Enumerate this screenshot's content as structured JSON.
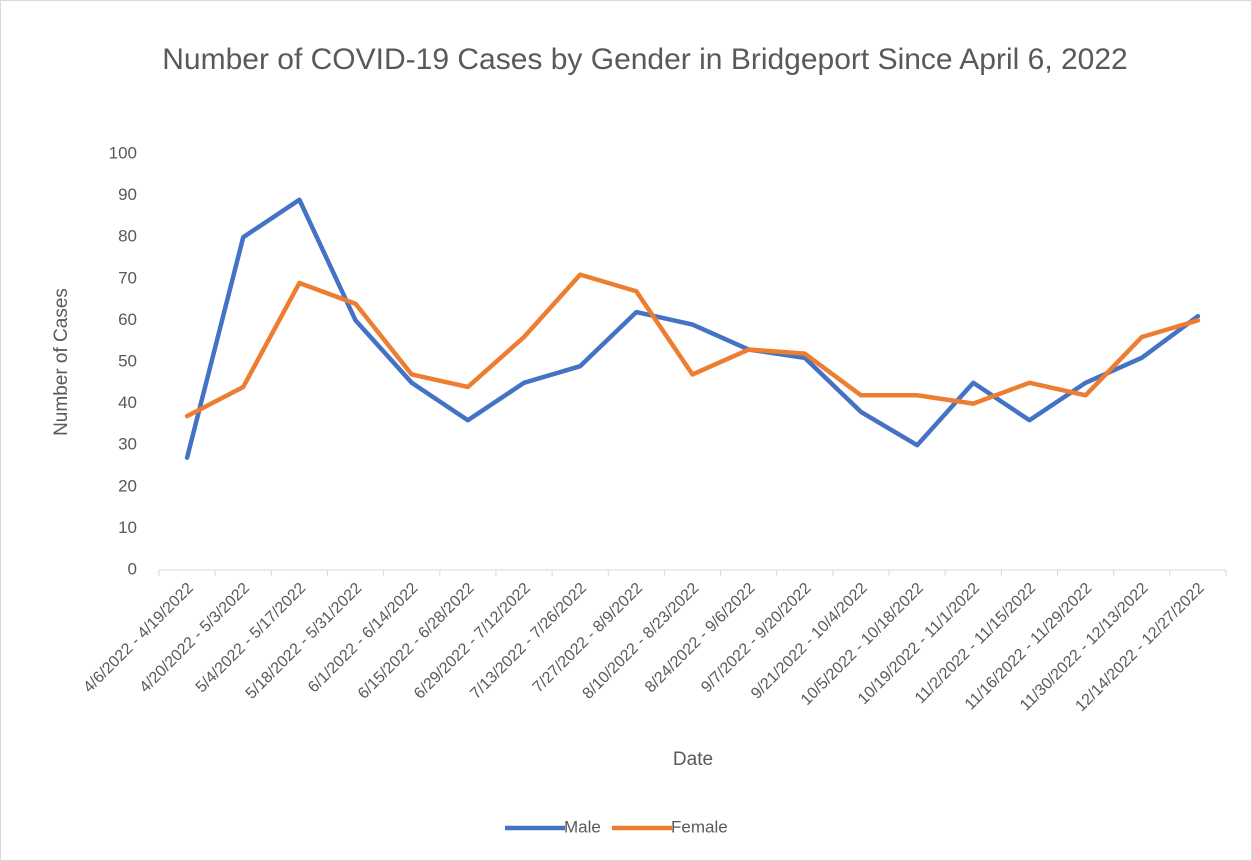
{
  "chart_data": {
    "type": "line",
    "title": "Number of COVID-19 Cases by Gender in Bridgeport Since April 6, 2022",
    "x_label": "Date",
    "y_label": "Number of Cases",
    "categories": [
      "4/6/2022 - 4/19/2022",
      "4/20/2022 - 5/3/2022",
      "5/4/2022 - 5/17/2022",
      "5/18/2022 - 5/31/2022",
      "6/1/2022 - 6/14/2022",
      "6/15/2022 - 6/28/2022",
      "6/29/2022 - 7/12/2022",
      "7/13/2022 - 7/26/2022",
      "7/27/2022 - 8/9/2022",
      "8/10/2022 - 8/23/2022",
      "8/24/2022 - 9/6/2022",
      "9/7/2022 - 9/20/2022",
      "9/21/2022 - 10/4/2022",
      "10/5/2022 - 10/18/2022",
      "10/19/2022 - 11/1/2022",
      "11/2/2022 - 11/15/2022",
      "11/16/2022 - 11/29/2022",
      "11/30/2022 - 12/13/2022",
      "12/14/2022 - 12/27/2022"
    ],
    "series": [
      {
        "name": "Male",
        "color": "#4472c4",
        "values": [
          27,
          80,
          89,
          60,
          45,
          36,
          45,
          49,
          62,
          59,
          53,
          51,
          38,
          30,
          45,
          36,
          45,
          51,
          61
        ]
      },
      {
        "name": "Female",
        "color": "#ed7d31",
        "values": [
          37,
          44,
          69,
          64,
          47,
          44,
          56,
          71,
          67,
          47,
          53,
          52,
          42,
          42,
          40,
          45,
          42,
          56,
          60
        ]
      }
    ],
    "ylim": [
      0,
      100
    ],
    "yticks": [
      0,
      10,
      20,
      30,
      40,
      50,
      60,
      70,
      80,
      90,
      100
    ],
    "grid": false,
    "legend": "bottom"
  }
}
